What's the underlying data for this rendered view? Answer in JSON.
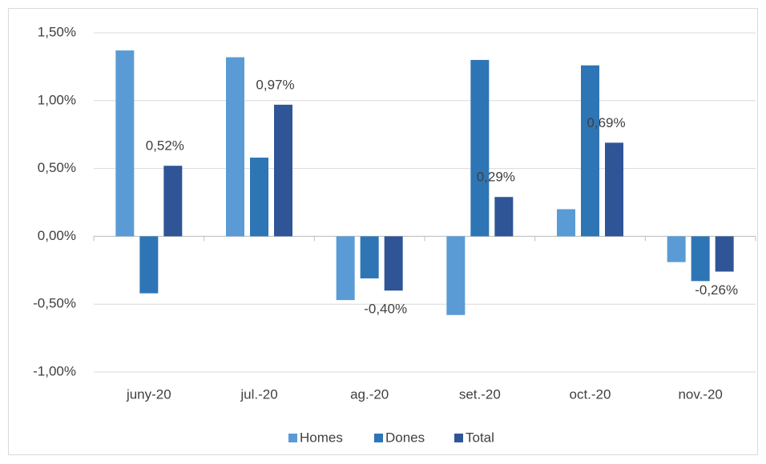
{
  "chart_data": {
    "type": "bar",
    "categories": [
      "juny-20",
      "jul.-20",
      "ag.-20",
      "set.-20",
      "oct.-20",
      "nov.-20"
    ],
    "series": [
      {
        "name": "Homes",
        "color": "#5b9bd5",
        "values": [
          1.37,
          1.32,
          -0.47,
          -0.58,
          0.2,
          -0.19
        ]
      },
      {
        "name": "Dones",
        "color": "#2e75b6",
        "values": [
          -0.42,
          0.58,
          -0.31,
          1.3,
          1.26,
          -0.33
        ]
      },
      {
        "name": "Total",
        "color": "#2f5597",
        "values": [
          0.52,
          0.97,
          -0.4,
          0.29,
          0.69,
          -0.26
        ],
        "value_labels": [
          "0,52%",
          "0,97%",
          "-0,40%",
          "0,29%",
          "0,69%",
          "-0,26%"
        ]
      }
    ],
    "ylim": [
      -1,
      1.5
    ],
    "yticks": [
      {
        "value": -1,
        "label": "-1,00%"
      },
      {
        "value": -0.5,
        "label": "-0,50%"
      },
      {
        "value": 0,
        "label": "0,00%"
      },
      {
        "value": 0.5,
        "label": "0,50%"
      },
      {
        "value": 1,
        "label": "1,00%"
      },
      {
        "value": 1.5,
        "label": "1,50%"
      }
    ],
    "grid": true,
    "legend": "bottom"
  }
}
